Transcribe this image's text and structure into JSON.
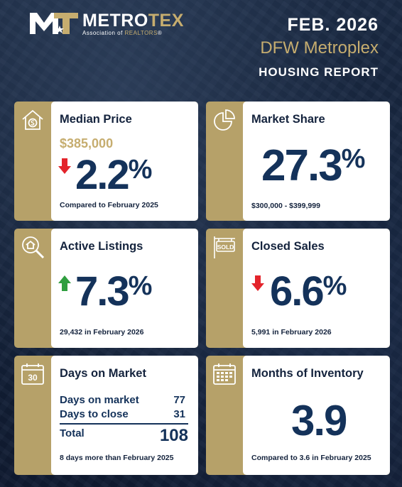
{
  "header": {
    "logo_mark": "MT",
    "logo_name_a": "METRO",
    "logo_name_b": "TEX",
    "logo_sub_a": "Association of ",
    "logo_sub_b": "REALTORS",
    "logo_sub_c": "®",
    "date": "FEB. 2026",
    "region": "DFW Metroplex",
    "report": "HOUSING REPORT"
  },
  "colors": {
    "navy": "#14233d",
    "gold": "#c6ad6f",
    "down_red": "#e3242b",
    "up_green": "#2f9e3f"
  },
  "cards": {
    "median_price": {
      "icon": "house-dollar-icon",
      "title": "Median Price",
      "price": "$385,000",
      "direction": "down",
      "value": "2.2",
      "unit": "%",
      "footnote": "Compared to February 2025"
    },
    "market_share": {
      "icon": "pie-chart-icon",
      "title": "Market Share",
      "value": "27.3",
      "unit": "%",
      "footnote": "$300,000 - $399,999"
    },
    "active_listings": {
      "icon": "house-search-icon",
      "title": "Active Listings",
      "direction": "up",
      "value": "7.3",
      "unit": "%",
      "footnote": "29,432 in February 2026"
    },
    "closed_sales": {
      "icon": "sold-sign-icon",
      "title": "Closed Sales",
      "direction": "down",
      "value": "6.6",
      "unit": "%",
      "footnote": "5,991 in February 2026"
    },
    "days_on_market": {
      "icon": "calendar-30-icon",
      "icon_text": "30",
      "title": "Days on Market",
      "rows": [
        {
          "label": "Days on market",
          "value": "77"
        },
        {
          "label": "Days to close",
          "value": "31"
        }
      ],
      "total_label": "Total",
      "total_value": "108",
      "footnote": "8 days more than February 2025"
    },
    "months_inventory": {
      "icon": "calendar-grid-icon",
      "title": "Months of Inventory",
      "value": "3.9",
      "footnote": "Compared to 3.6 in February 2025"
    }
  }
}
